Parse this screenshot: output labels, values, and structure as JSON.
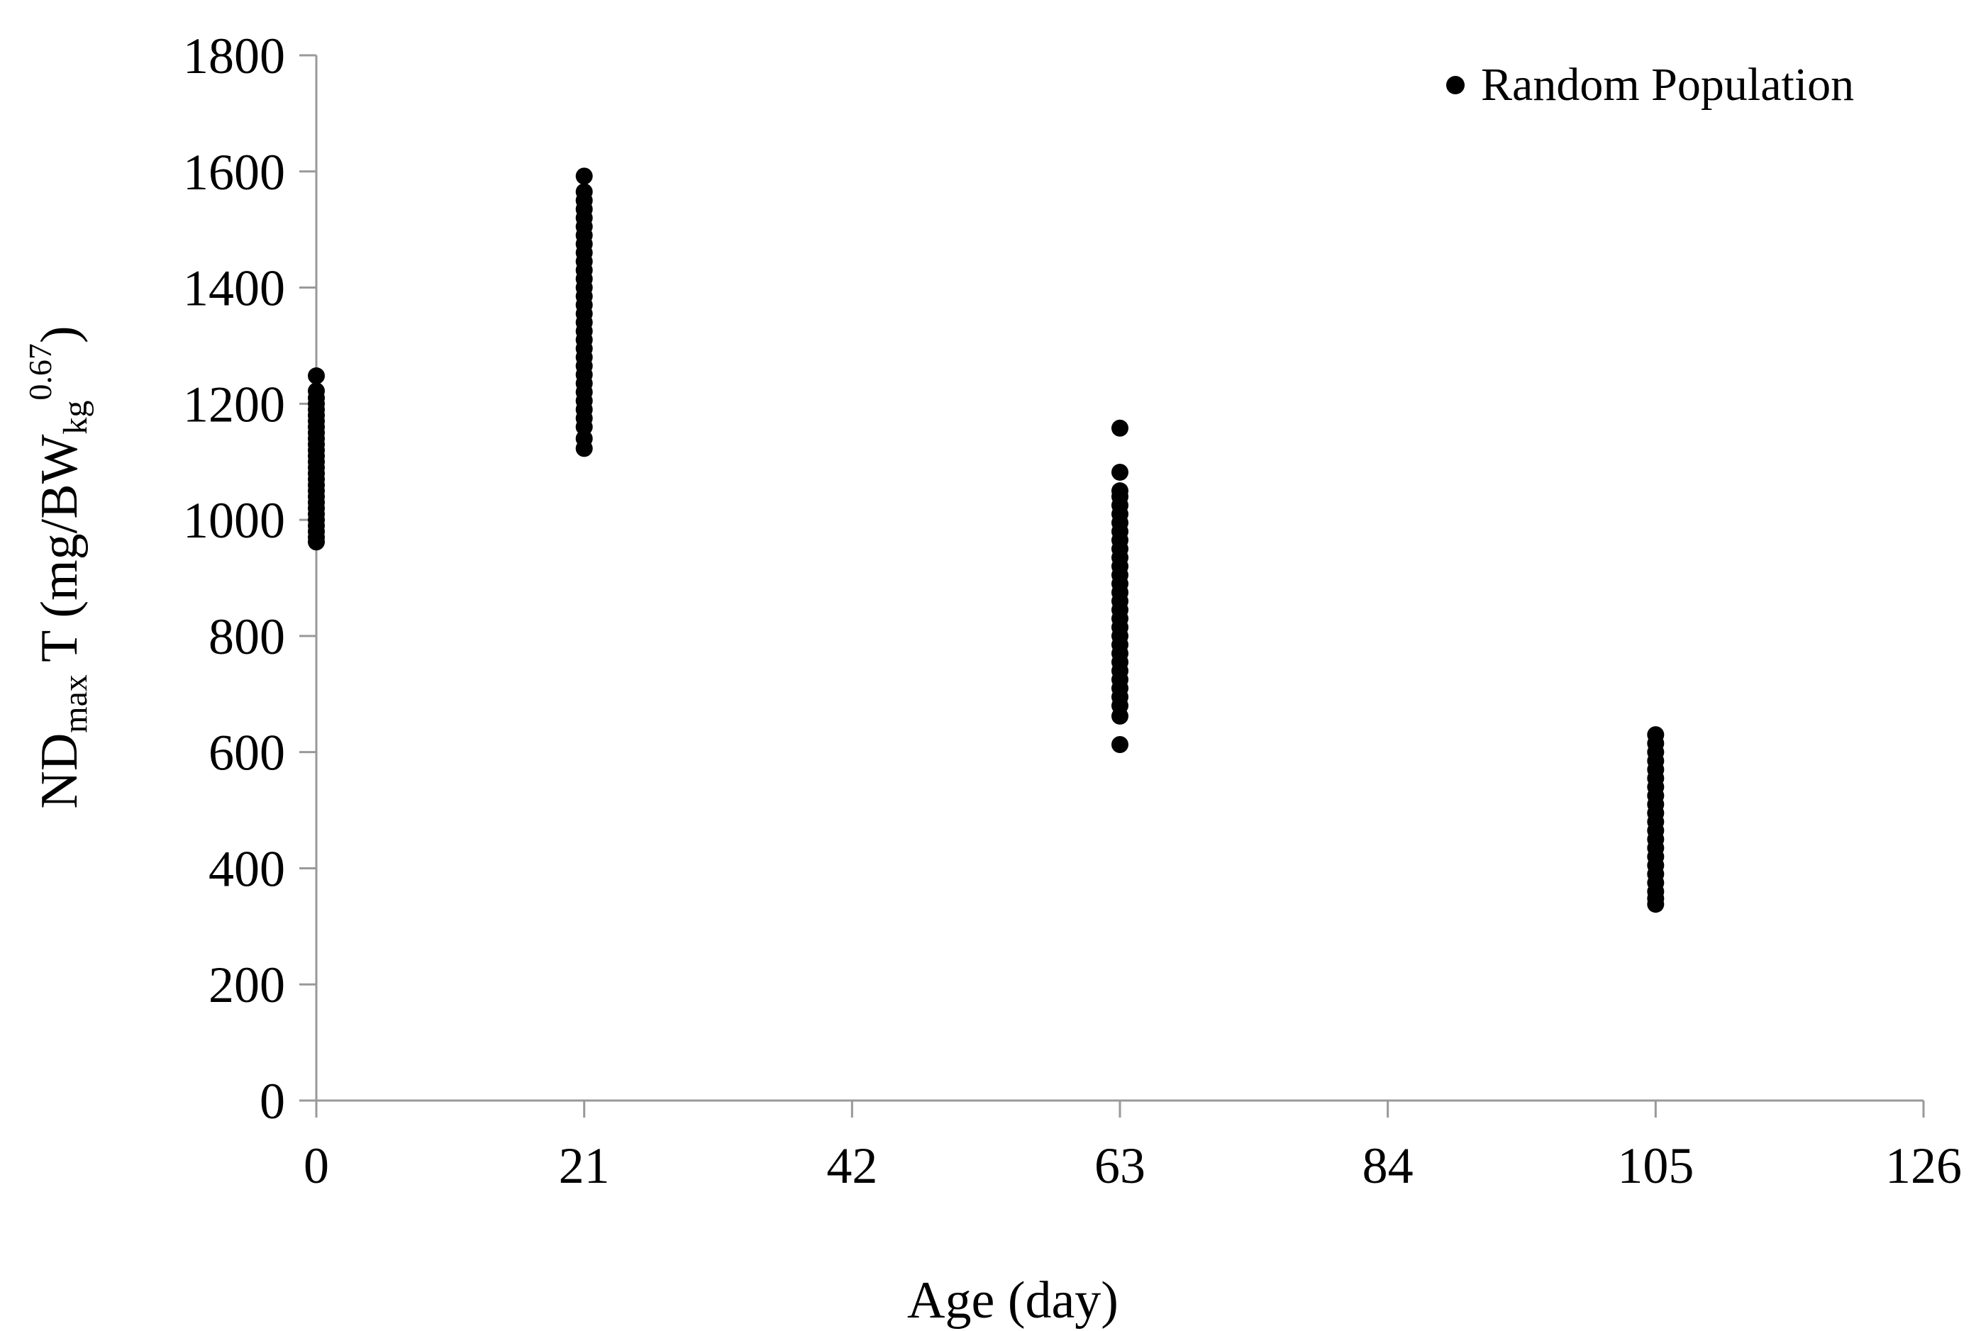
{
  "chart_data": {
    "type": "scatter",
    "title": "",
    "xlabel": "Age (day)",
    "ylabel": {
      "base": "ND",
      "base_sub": "max",
      "mid": " T (mg/BW",
      "unit_sub": "kg",
      "unit_sup": "0.67",
      "close": ")"
    },
    "xlim": [
      0,
      126
    ],
    "ylim": [
      0,
      1800
    ],
    "x_ticks": [
      0,
      21,
      42,
      63,
      84,
      105,
      126
    ],
    "y_ticks": [
      0,
      200,
      400,
      600,
      800,
      1000,
      1200,
      1400,
      1600,
      1800
    ],
    "grid": false,
    "legend_position": "top-right",
    "marker_color": "#000000",
    "axis_color": "#999999",
    "series": [
      {
        "name": "Random Population",
        "points": [
          {
            "x": 0,
            "y": 1248
          },
          {
            "x": 0,
            "y": 1222
          },
          {
            "x": 0,
            "y": 1210
          },
          {
            "x": 0,
            "y": 1200
          },
          {
            "x": 0,
            "y": 1190
          },
          {
            "x": 0,
            "y": 1180
          },
          {
            "x": 0,
            "y": 1170
          },
          {
            "x": 0,
            "y": 1160
          },
          {
            "x": 0,
            "y": 1150
          },
          {
            "x": 0,
            "y": 1140
          },
          {
            "x": 0,
            "y": 1130
          },
          {
            "x": 0,
            "y": 1120
          },
          {
            "x": 0,
            "y": 1110
          },
          {
            "x": 0,
            "y": 1100
          },
          {
            "x": 0,
            "y": 1090
          },
          {
            "x": 0,
            "y": 1080
          },
          {
            "x": 0,
            "y": 1070
          },
          {
            "x": 0,
            "y": 1060
          },
          {
            "x": 0,
            "y": 1050
          },
          {
            "x": 0,
            "y": 1040
          },
          {
            "x": 0,
            "y": 1030
          },
          {
            "x": 0,
            "y": 1020
          },
          {
            "x": 0,
            "y": 1010
          },
          {
            "x": 0,
            "y": 1000
          },
          {
            "x": 0,
            "y": 990
          },
          {
            "x": 0,
            "y": 980
          },
          {
            "x": 0,
            "y": 970
          },
          {
            "x": 0,
            "y": 962
          },
          {
            "x": 21,
            "y": 1592
          },
          {
            "x": 21,
            "y": 1565
          },
          {
            "x": 21,
            "y": 1550
          },
          {
            "x": 21,
            "y": 1535
          },
          {
            "x": 21,
            "y": 1520
          },
          {
            "x": 21,
            "y": 1505
          },
          {
            "x": 21,
            "y": 1490
          },
          {
            "x": 21,
            "y": 1475
          },
          {
            "x": 21,
            "y": 1460
          },
          {
            "x": 21,
            "y": 1445
          },
          {
            "x": 21,
            "y": 1430
          },
          {
            "x": 21,
            "y": 1415
          },
          {
            "x": 21,
            "y": 1400
          },
          {
            "x": 21,
            "y": 1385
          },
          {
            "x": 21,
            "y": 1370
          },
          {
            "x": 21,
            "y": 1355
          },
          {
            "x": 21,
            "y": 1340
          },
          {
            "x": 21,
            "y": 1325
          },
          {
            "x": 21,
            "y": 1310
          },
          {
            "x": 21,
            "y": 1295
          },
          {
            "x": 21,
            "y": 1280
          },
          {
            "x": 21,
            "y": 1265
          },
          {
            "x": 21,
            "y": 1250
          },
          {
            "x": 21,
            "y": 1235
          },
          {
            "x": 21,
            "y": 1220
          },
          {
            "x": 21,
            "y": 1205
          },
          {
            "x": 21,
            "y": 1190
          },
          {
            "x": 21,
            "y": 1175
          },
          {
            "x": 21,
            "y": 1160
          },
          {
            "x": 21,
            "y": 1140
          },
          {
            "x": 21,
            "y": 1123
          },
          {
            "x": 63,
            "y": 1158
          },
          {
            "x": 63,
            "y": 1082
          },
          {
            "x": 63,
            "y": 1050
          },
          {
            "x": 63,
            "y": 1040
          },
          {
            "x": 63,
            "y": 1025
          },
          {
            "x": 63,
            "y": 1010
          },
          {
            "x": 63,
            "y": 995
          },
          {
            "x": 63,
            "y": 980
          },
          {
            "x": 63,
            "y": 965
          },
          {
            "x": 63,
            "y": 950
          },
          {
            "x": 63,
            "y": 935
          },
          {
            "x": 63,
            "y": 920
          },
          {
            "x": 63,
            "y": 905
          },
          {
            "x": 63,
            "y": 890
          },
          {
            "x": 63,
            "y": 875
          },
          {
            "x": 63,
            "y": 860
          },
          {
            "x": 63,
            "y": 845
          },
          {
            "x": 63,
            "y": 830
          },
          {
            "x": 63,
            "y": 815
          },
          {
            "x": 63,
            "y": 800
          },
          {
            "x": 63,
            "y": 785
          },
          {
            "x": 63,
            "y": 770
          },
          {
            "x": 63,
            "y": 755
          },
          {
            "x": 63,
            "y": 740
          },
          {
            "x": 63,
            "y": 725
          },
          {
            "x": 63,
            "y": 710
          },
          {
            "x": 63,
            "y": 695
          },
          {
            "x": 63,
            "y": 680
          },
          {
            "x": 63,
            "y": 662
          },
          {
            "x": 63,
            "y": 613
          },
          {
            "x": 105,
            "y": 630
          },
          {
            "x": 105,
            "y": 615
          },
          {
            "x": 105,
            "y": 600
          },
          {
            "x": 105,
            "y": 585
          },
          {
            "x": 105,
            "y": 570
          },
          {
            "x": 105,
            "y": 555
          },
          {
            "x": 105,
            "y": 540
          },
          {
            "x": 105,
            "y": 525
          },
          {
            "x": 105,
            "y": 510
          },
          {
            "x": 105,
            "y": 495
          },
          {
            "x": 105,
            "y": 480
          },
          {
            "x": 105,
            "y": 465
          },
          {
            "x": 105,
            "y": 450
          },
          {
            "x": 105,
            "y": 435
          },
          {
            "x": 105,
            "y": 420
          },
          {
            "x": 105,
            "y": 405
          },
          {
            "x": 105,
            "y": 390
          },
          {
            "x": 105,
            "y": 375
          },
          {
            "x": 105,
            "y": 360
          },
          {
            "x": 105,
            "y": 348
          },
          {
            "x": 105,
            "y": 338
          }
        ]
      }
    ]
  }
}
